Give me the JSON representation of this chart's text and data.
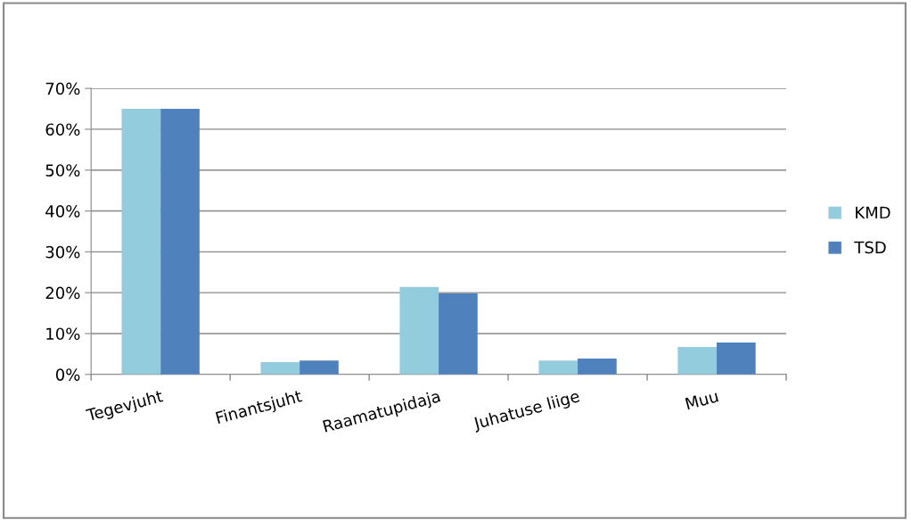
{
  "chart_data": {
    "type": "bar",
    "categories": [
      "Tegevjuht",
      "Finantsjuht",
      "Raamatupidaja",
      "Juhatuse liige",
      "Muu"
    ],
    "series": [
      {
        "name": "KMD",
        "color": "#93cddd",
        "values": [
          65,
          3,
          21.4,
          3.4,
          6.7
        ]
      },
      {
        "name": "TSD",
        "color": "#4f81bd",
        "values": [
          65,
          3.4,
          19.8,
          3.9,
          7.8
        ]
      }
    ],
    "ylim": [
      0,
      70
    ],
    "yticks": [
      {
        "value": 0,
        "label": "0%"
      },
      {
        "value": 10,
        "label": "10%"
      },
      {
        "value": 20,
        "label": "20%"
      },
      {
        "value": 30,
        "label": "30%"
      },
      {
        "value": 40,
        "label": "40%"
      },
      {
        "value": 50,
        "label": "50%"
      },
      {
        "value": 60,
        "label": "60%"
      },
      {
        "value": 70,
        "label": "70%"
      }
    ],
    "grid": "y",
    "legend": "right"
  }
}
